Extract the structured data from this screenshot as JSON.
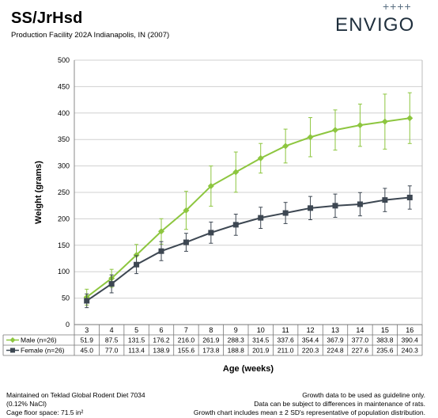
{
  "header": {
    "title": "SS/JrHsd",
    "subtitle": "Production Facility 202A Indianapolis, IN (2007)"
  },
  "logo": {
    "text": "ENVIGO",
    "plus_marks": "++++",
    "color": "#1f2f3d"
  },
  "chart_data": {
    "type": "line",
    "title": "",
    "xlabel": "Age (weeks)",
    "ylabel": "Weight (grams)",
    "ylim": [
      0,
      500
    ],
    "yticks": [
      0,
      50,
      100,
      150,
      200,
      250,
      300,
      350,
      400,
      450,
      500
    ],
    "x": [
      3,
      4,
      5,
      6,
      7,
      8,
      9,
      10,
      11,
      12,
      13,
      14,
      15,
      16
    ],
    "grid": "horizontal",
    "legend_placement": "data-table-left",
    "series": [
      {
        "name": "Male (n=26)",
        "color": "#8dc63f",
        "marker": "diamond",
        "values": [
          51.9,
          87.5,
          131.5,
          176.2,
          216.0,
          261.9,
          288.3,
          314.5,
          337.6,
          354.4,
          367.9,
          377.0,
          383.8,
          390.4
        ],
        "sd_error": [
          15,
          17,
          20,
          24,
          36,
          38,
          38,
          28,
          32,
          37,
          38,
          40,
          52,
          48
        ]
      },
      {
        "name": "Female (n=26)",
        "color": "#3d4752",
        "marker": "square",
        "values": [
          45.0,
          77.0,
          113.4,
          138.9,
          155.6,
          173.8,
          188.8,
          201.9,
          211.0,
          220.3,
          224.8,
          227.6,
          235.6,
          240.3
        ],
        "sd_error": [
          13,
          17,
          17,
          18,
          17,
          20,
          20,
          20,
          20,
          22,
          22,
          22,
          22,
          22
        ]
      }
    ]
  },
  "footer": {
    "left": [
      "Maintained on Teklad Global Rodent Diet 7034",
      "(0.12% NaCl)",
      "Cage floor space: 71.5 in²"
    ],
    "right": [
      "Growth data to be used as guideline only.",
      "Data can be subject to differences in maintenance of rats.",
      "Growth chart includes mean ± 2 SD's representative of population distribution."
    ]
  }
}
